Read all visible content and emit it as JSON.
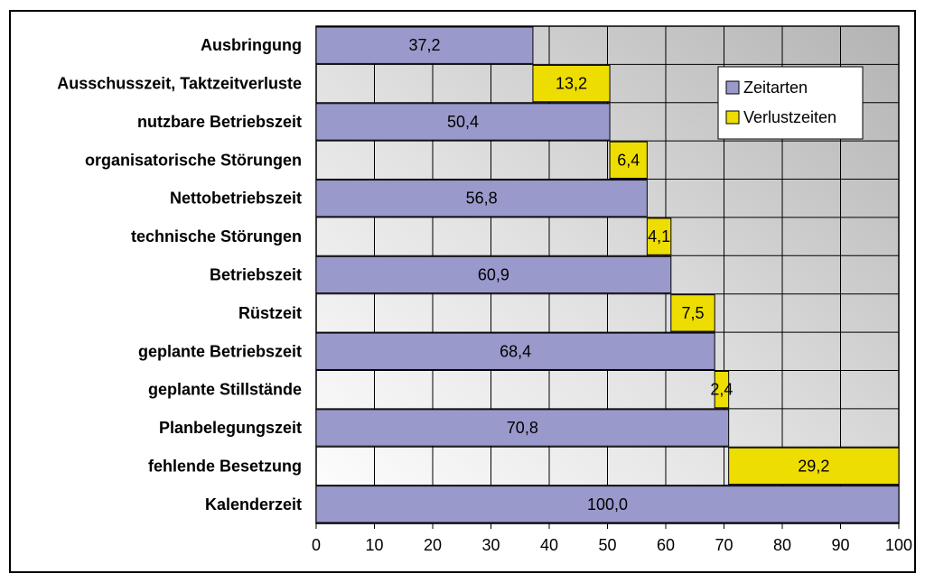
{
  "chart_data": {
    "type": "bar",
    "orientation": "horizontal",
    "stacked": true,
    "categories": [
      "Ausbringung",
      "Ausschusszeit, Taktzeitverluste",
      "nutzbare Betriebszeit",
      "organisatorische Störungen",
      "Nettobetriebszeit",
      "technische Störungen",
      "Betriebszeit",
      "Rüstzeit",
      "geplante Betriebszeit",
      "geplante Stillstände",
      "Planbelegungszeit",
      "fehlende Besetzung",
      "Kalenderzeit"
    ],
    "bars": [
      {
        "category": "Ausbringung",
        "series": "Zeitarten",
        "start": 0,
        "value": 37.2,
        "label": "37,2"
      },
      {
        "category": "Ausschusszeit, Taktzeitverluste",
        "series": "Verlustzeiten",
        "start": 37.2,
        "value": 13.2,
        "label": "13,2"
      },
      {
        "category": "nutzbare Betriebszeit",
        "series": "Zeitarten",
        "start": 0,
        "value": 50.4,
        "label": "50,4"
      },
      {
        "category": "organisatorische Störungen",
        "series": "Verlustzeiten",
        "start": 50.4,
        "value": 6.4,
        "label": "6,4"
      },
      {
        "category": "Nettobetriebszeit",
        "series": "Zeitarten",
        "start": 0,
        "value": 56.8,
        "label": "56,8"
      },
      {
        "category": "technische Störungen",
        "series": "Verlustzeiten",
        "start": 56.8,
        "value": 4.1,
        "label": "4,1"
      },
      {
        "category": "Betriebszeit",
        "series": "Zeitarten",
        "start": 0,
        "value": 60.9,
        "label": "60,9"
      },
      {
        "category": "Rüstzeit",
        "series": "Verlustzeiten",
        "start": 60.9,
        "value": 7.5,
        "label": "7,5"
      },
      {
        "category": "geplante Betriebszeit",
        "series": "Zeitarten",
        "start": 0,
        "value": 68.4,
        "label": "68,4"
      },
      {
        "category": "geplante Stillstände",
        "series": "Verlustzeiten",
        "start": 68.4,
        "value": 2.4,
        "label": "2,4"
      },
      {
        "category": "Planbelegungszeit",
        "series": "Zeitarten",
        "start": 0,
        "value": 70.8,
        "label": "70,8"
      },
      {
        "category": "fehlende Besetzung",
        "series": "Verlustzeiten",
        "start": 70.8,
        "value": 29.2,
        "label": "29,2"
      },
      {
        "category": "Kalenderzeit",
        "series": "Zeitarten",
        "start": 0,
        "value": 100.0,
        "label": "100,0"
      }
    ],
    "series": [
      {
        "name": "Zeitarten",
        "color": "#9999cc"
      },
      {
        "name": "Verlustzeiten",
        "color": "#eedd00"
      }
    ],
    "xlim": [
      0,
      100
    ],
    "xticks": [
      0,
      10,
      20,
      30,
      40,
      50,
      60,
      70,
      80,
      90,
      100
    ],
    "xlabel": "",
    "ylabel": "",
    "title": "",
    "grid": true,
    "legend_position": "top-right",
    "background": "gray gradient, dark at top-right to white at bottom-left"
  }
}
